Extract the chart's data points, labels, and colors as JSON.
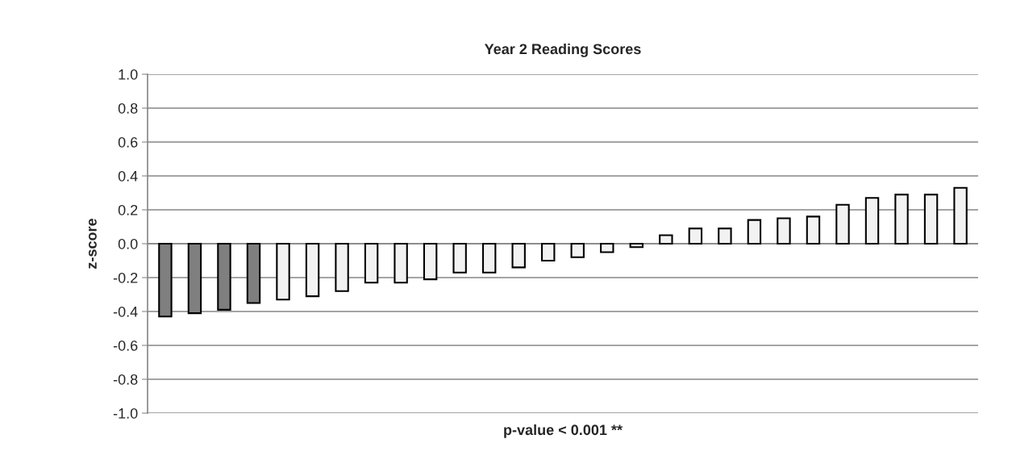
{
  "chart_data": {
    "type": "bar",
    "title": "Year 2 Reading Scores",
    "xlabel": "p-value < 0.001 **",
    "ylabel": "z-score",
    "categories": [
      null,
      null,
      null,
      null,
      null,
      null,
      null,
      null,
      null,
      null,
      null,
      null,
      null,
      null,
      null,
      null,
      null,
      null,
      null,
      null,
      null,
      null,
      null,
      null,
      null,
      null,
      null,
      null
    ],
    "values": [
      -0.43,
      -0.41,
      -0.39,
      -0.35,
      -0.33,
      -0.31,
      -0.28,
      -0.23,
      -0.23,
      -0.21,
      -0.17,
      -0.17,
      -0.14,
      -0.1,
      -0.08,
      -0.05,
      -0.02,
      0.05,
      0.09,
      0.09,
      0.14,
      0.15,
      0.16,
      0.23,
      0.27,
      0.29,
      0.29,
      0.33
    ],
    "colors": [
      "#7f7f7f",
      "#7f7f7f",
      "#7f7f7f",
      "#7f7f7f",
      "#f2f2f2",
      "#f2f2f2",
      "#f2f2f2",
      "#f2f2f2",
      "#f2f2f2",
      "#f2f2f2",
      "#f2f2f2",
      "#f2f2f2",
      "#f2f2f2",
      "#f2f2f2",
      "#f2f2f2",
      "#f2f2f2",
      "#f2f2f2",
      "#f2f2f2",
      "#f2f2f2",
      "#f2f2f2",
      "#f2f2f2",
      "#f2f2f2",
      "#f2f2f2",
      "#f2f2f2",
      "#f2f2f2",
      "#f2f2f2",
      "#f2f2f2",
      "#f2f2f2"
    ],
    "ylim": [
      -1.0,
      1.0
    ],
    "yticks": [
      {
        "value": -1.0,
        "label": "-1.0"
      },
      {
        "value": -0.8,
        "label": "-0.8"
      },
      {
        "value": -0.6,
        "label": "-0.6"
      },
      {
        "value": -0.4,
        "label": "-0.4"
      },
      {
        "value": -0.2,
        "label": "-0.2"
      },
      {
        "value": 0.0,
        "label": "0.0"
      },
      {
        "value": 0.2,
        "label": "0.2"
      },
      {
        "value": 0.4,
        "label": "0.4"
      },
      {
        "value": 0.6,
        "label": "0.6"
      },
      {
        "value": 0.8,
        "label": "0.8"
      },
      {
        "value": 1.0,
        "label": "1.0"
      }
    ],
    "grid": "y",
    "tick_labels": "y"
  }
}
